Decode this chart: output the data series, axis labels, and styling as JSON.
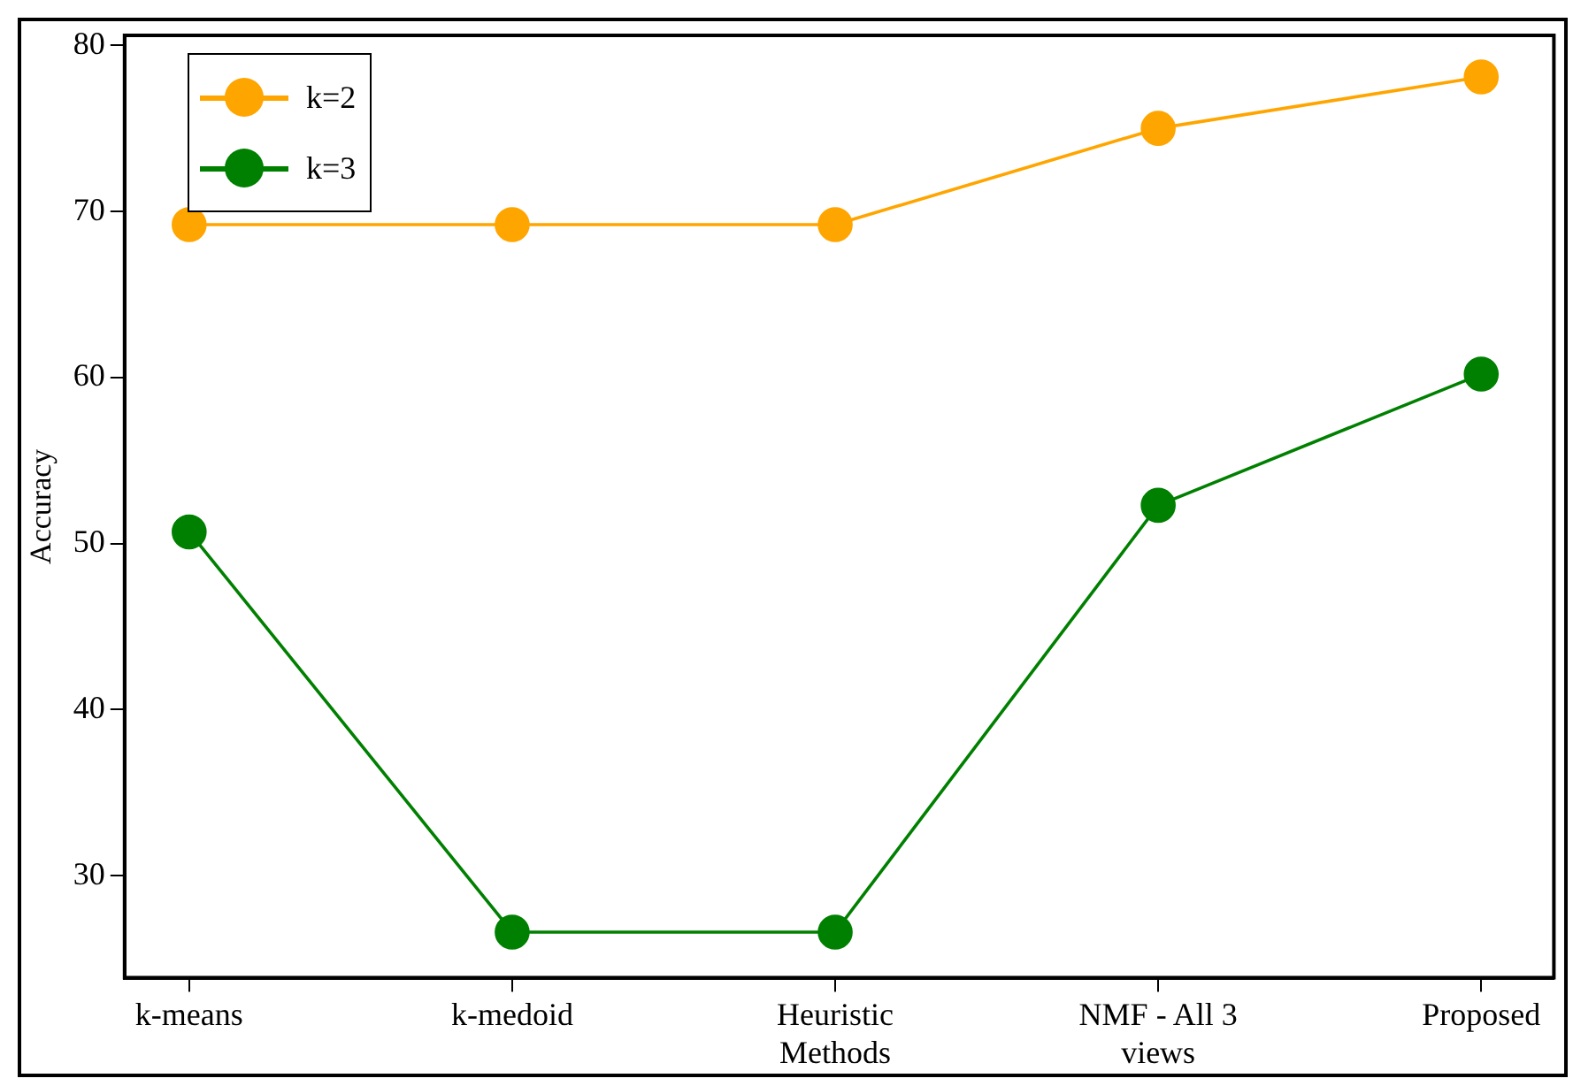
{
  "chart_data": {
    "type": "line",
    "ylabel": "Accuracy",
    "categories": [
      "k-means",
      "k-medoid",
      "Heuristic Methods",
      "NMF - All 3 views",
      "Proposed"
    ],
    "series": [
      {
        "name": "k=2",
        "color": "#ffa500",
        "values": [
          69.2,
          69.2,
          69.2,
          75.0,
          78.1
        ]
      },
      {
        "name": "k=3",
        "color": "#008000",
        "values": [
          50.7,
          26.6,
          26.6,
          52.3,
          60.2
        ]
      }
    ],
    "ylim": [
      23.85,
      80.6
    ],
    "yticks": [
      30,
      40,
      50,
      60,
      70,
      80
    ],
    "grid": false,
    "legend": "top left",
    "marker": "circle",
    "line_style": "solid"
  }
}
